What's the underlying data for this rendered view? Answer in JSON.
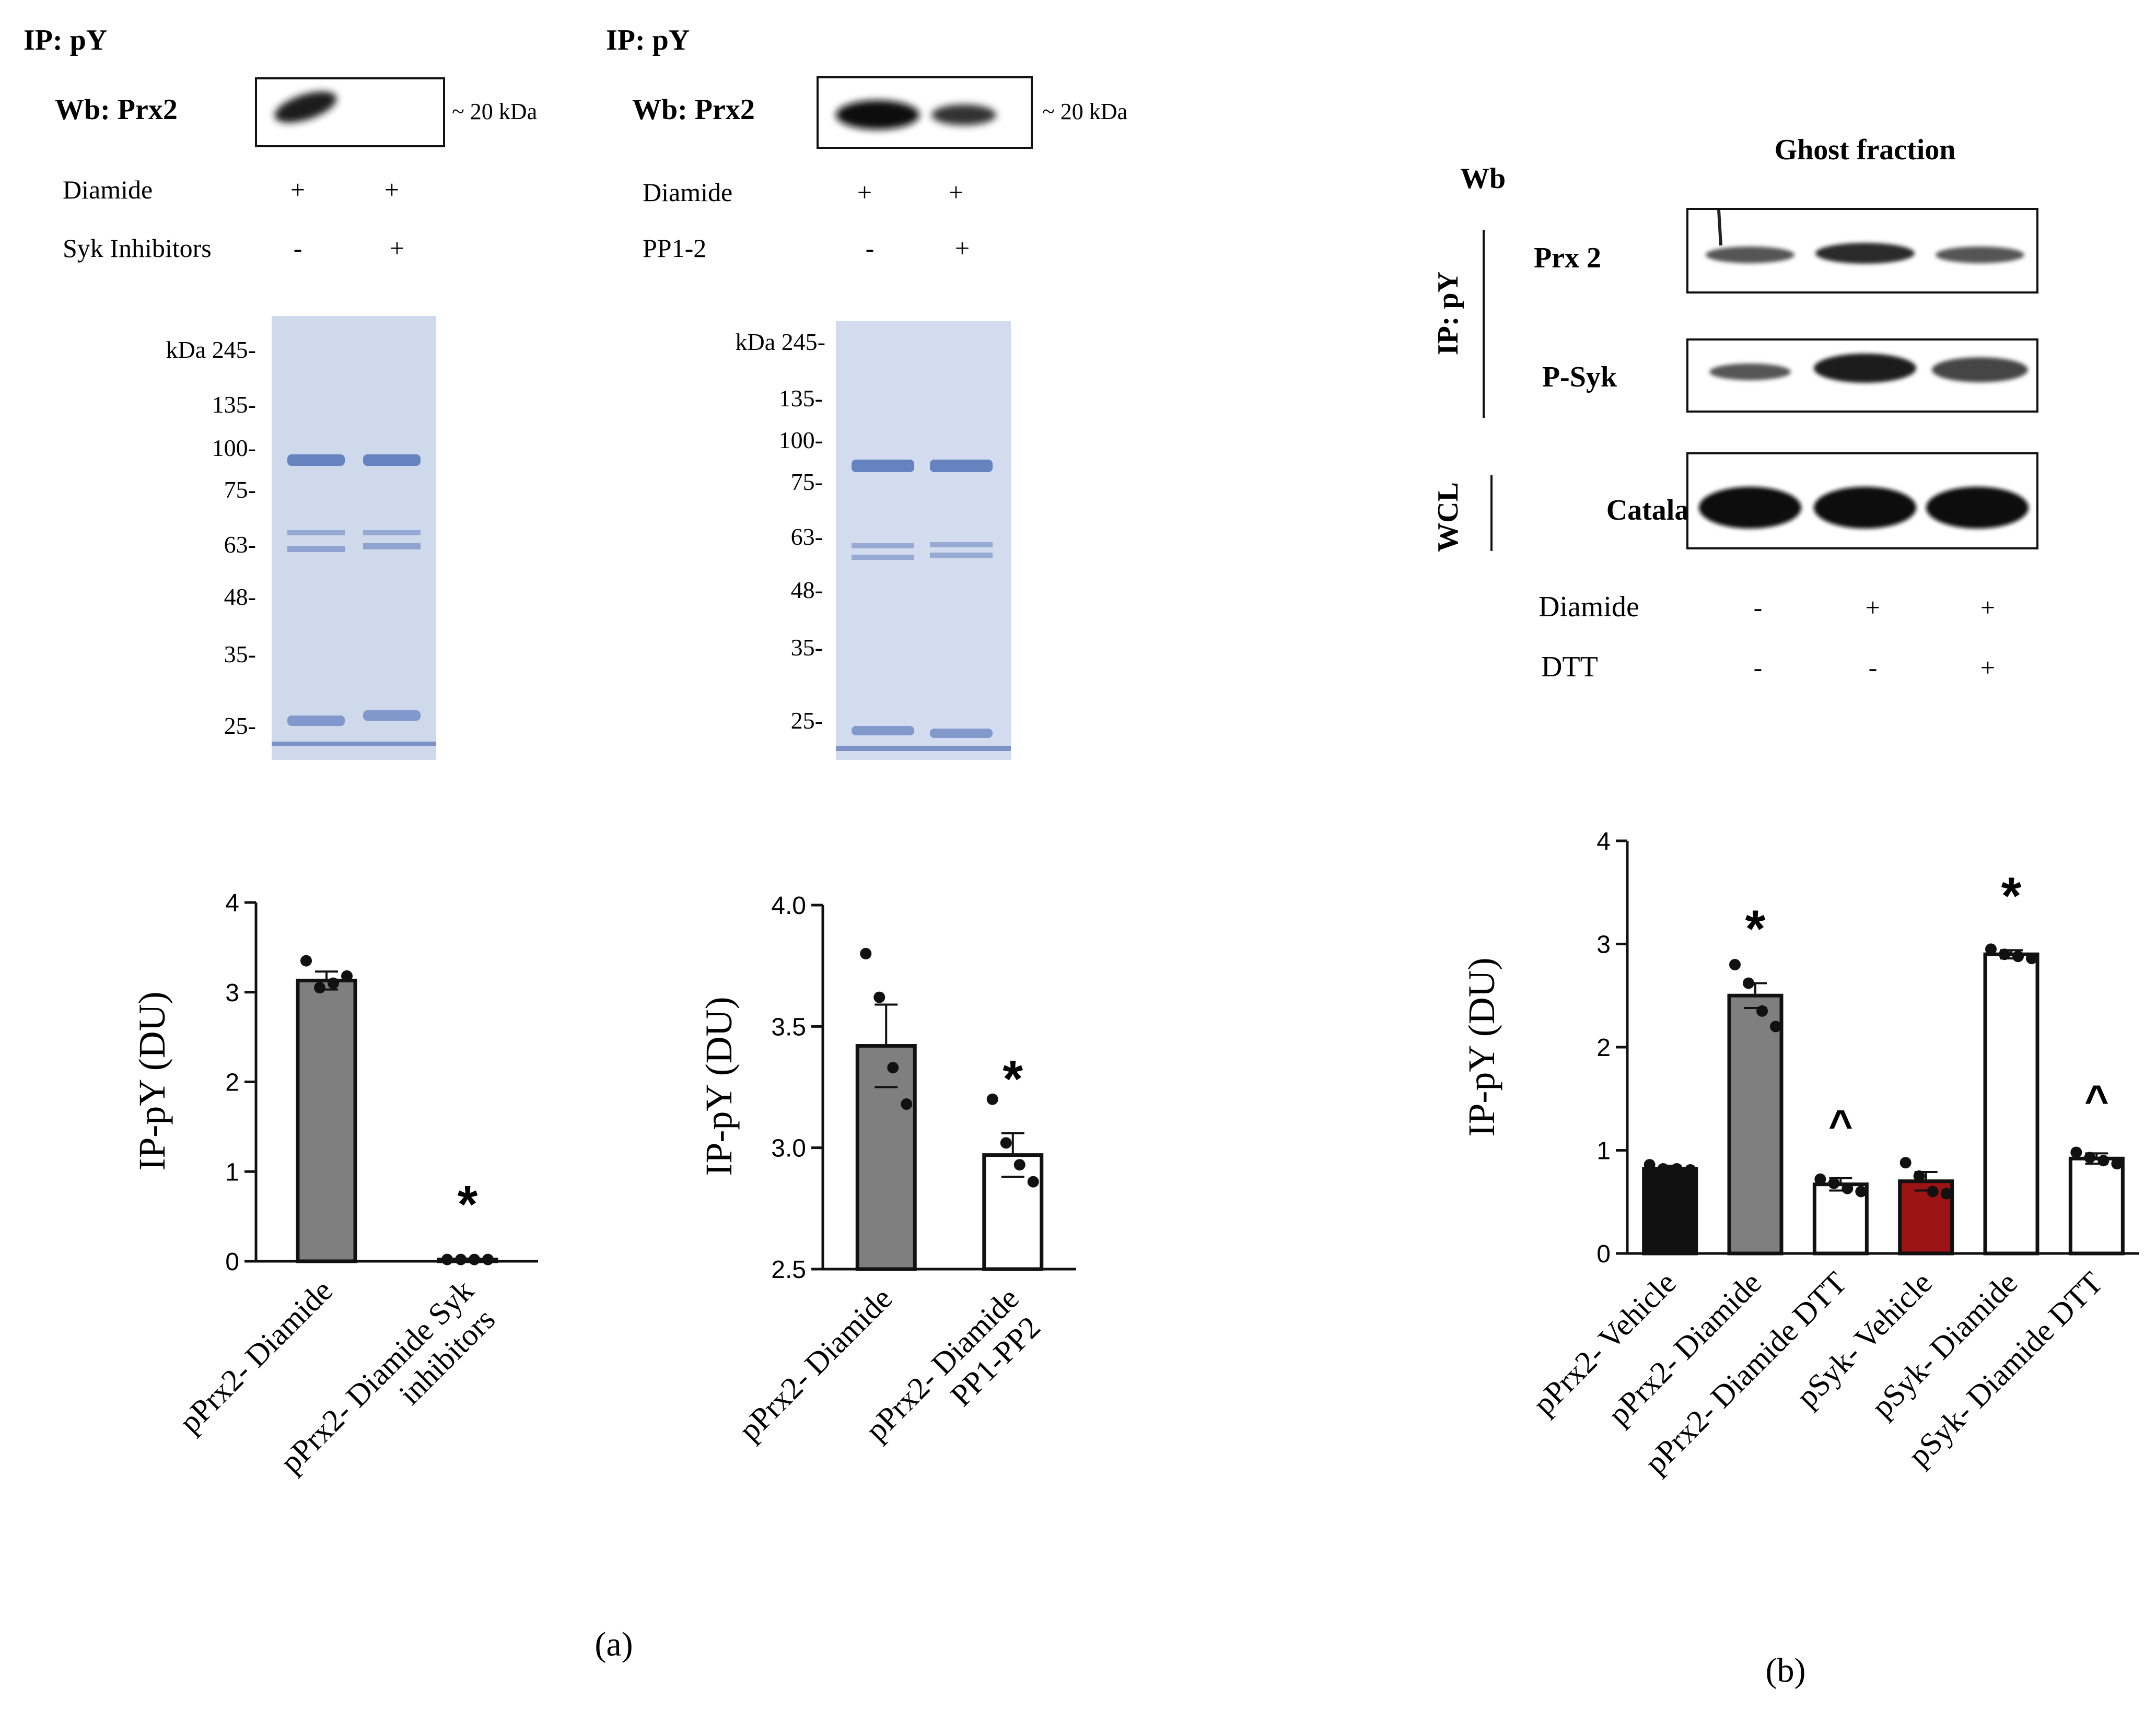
{
  "panel_a_blot1": {
    "ip": "IP: pY",
    "wb": "Wb: Prx2",
    "mw": "~ 20 kDa",
    "treatments": [
      {
        "label": "Diamide",
        "signs": [
          "+",
          "+"
        ]
      },
      {
        "label": "Syk Inhibitors",
        "signs": [
          "-",
          "+"
        ]
      }
    ],
    "ladder": [
      "kDa 245-",
      "135-",
      "100-",
      "75-",
      "63-",
      "48-",
      "35-",
      "25-"
    ]
  },
  "panel_a_blot2": {
    "ip": "IP: pY",
    "wb": "Wb: Prx2",
    "mw": "~ 20 kDa",
    "treatments": [
      {
        "label": "Diamide",
        "signs": [
          "+",
          "+"
        ]
      },
      {
        "label": "PP1-2",
        "signs": [
          "-",
          "+"
        ]
      }
    ],
    "ladder": [
      "kDa 245-",
      "135-",
      "100-",
      "75-",
      "63-",
      "48-",
      "35-",
      "25-"
    ]
  },
  "panel_b_blot": {
    "wb": "Wb",
    "ghost": "Ghost fraction",
    "ip": "IP: pY",
    "wcl": "WCL",
    "rows": [
      "Prx 2",
      "P-Syk",
      "Catalase"
    ],
    "treatments": [
      {
        "label": "Diamide",
        "signs": [
          "-",
          "+",
          "+"
        ]
      },
      {
        "label": "DTT",
        "signs": [
          "-",
          "-",
          "+"
        ]
      }
    ]
  },
  "captions": {
    "a": "(a)",
    "b": "(b)"
  },
  "colors": {
    "gray": "#7f7f7f",
    "black": "#111111",
    "red": "#9c1414",
    "white": "#ffffff"
  },
  "chart_data": [
    {
      "type": "bar",
      "ylabel": "IP-pY (DU)",
      "ylim": [
        0,
        4
      ],
      "yticks": [
        "0",
        "1",
        "2",
        "3",
        "4"
      ],
      "categories": [
        "pPrx2- Diamide",
        "pPrx2- Diamide Syk inhibitors"
      ],
      "values": [
        3.13,
        0.02
      ],
      "errors": [
        0.1,
        0.01
      ],
      "points": [
        [
          3.35,
          3.05,
          3.1,
          3.18
        ],
        [
          0.02,
          0.02,
          0.02,
          0.02
        ]
      ],
      "fills": [
        "gray",
        "white"
      ],
      "annotations": [
        "",
        "*"
      ]
    },
    {
      "type": "bar",
      "ylabel": "IP-pY (DU)",
      "ylim": [
        2.5,
        4.0
      ],
      "yticks": [
        "2.5",
        "3.0",
        "3.5",
        "4.0"
      ],
      "categories": [
        "pPrx2- Diamide",
        "pPrx2- Diamide PP1-PP2"
      ],
      "values": [
        3.42,
        2.97
      ],
      "errors": [
        0.17,
        0.09
      ],
      "points": [
        [
          3.8,
          3.62,
          3.33,
          3.18
        ],
        [
          3.2,
          3.02,
          2.93,
          2.86
        ]
      ],
      "fills": [
        "gray",
        "white"
      ],
      "annotations": [
        "",
        "*"
      ]
    },
    {
      "type": "bar",
      "ylabel": "IP-pY (DU)",
      "ylim": [
        0,
        4
      ],
      "yticks": [
        "0",
        "1",
        "2",
        "3",
        "4"
      ],
      "categories": [
        "pPrx2- Vehicle",
        "pPrx2- Diamide",
        "pPrx2- Diamide DTT",
        "pSyk- Vehicle",
        "pSyk- Diamide",
        "pSyk- Diamide DTT"
      ],
      "values": [
        0.82,
        2.5,
        0.67,
        0.7,
        2.9,
        0.92
      ],
      "errors": [
        0.03,
        0.12,
        0.06,
        0.09,
        0.04,
        0.05
      ],
      "points": [
        [
          0.86,
          0.82,
          0.82,
          0.81
        ],
        [
          2.8,
          2.62,
          2.35,
          2.2
        ],
        [
          0.72,
          0.68,
          0.63,
          0.6
        ],
        [
          0.88,
          0.75,
          0.6,
          0.58
        ],
        [
          2.95,
          2.9,
          2.88,
          2.86
        ],
        [
          0.98,
          0.93,
          0.9,
          0.87
        ]
      ],
      "fills": [
        "black",
        "gray",
        "white",
        "red",
        "white",
        "white"
      ],
      "annotations": [
        "",
        "*",
        "^",
        "",
        "*",
        "^"
      ]
    }
  ]
}
